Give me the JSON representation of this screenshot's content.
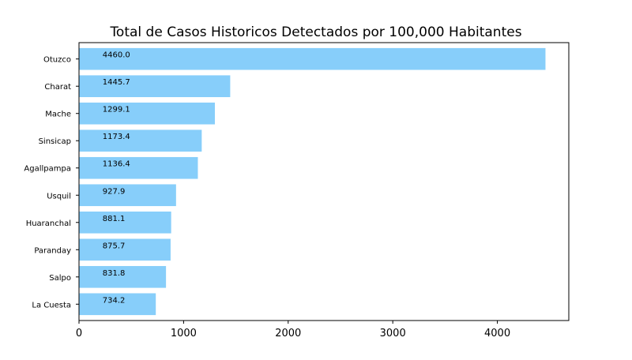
{
  "chart_data": {
    "type": "bar",
    "orientation": "horizontal",
    "title": "Total de Casos Historicos Detectados por 100,000 Habitantes",
    "xlabel": "",
    "ylabel": "",
    "categories": [
      "Otuzco",
      "Charat",
      "Mache",
      "Sinsicap",
      "Agallpampa",
      "Usquil",
      "Huaranchal",
      "Paranday",
      "Salpo",
      "La Cuesta"
    ],
    "values": [
      4460.0,
      1445.7,
      1299.1,
      1173.4,
      1136.4,
      927.9,
      881.1,
      875.7,
      831.8,
      734.2
    ],
    "data_labels": [
      "4460.0",
      "1445.7",
      "1299.1",
      "1173.4",
      "1136.4",
      "927.9",
      "881.1",
      "875.7",
      "831.8",
      "734.2"
    ],
    "xlim": [
      0,
      4683
    ],
    "xticks": [
      0,
      1000,
      2000,
      3000,
      4000
    ],
    "xtick_labels": [
      "0",
      "1000",
      "2000",
      "3000",
      "4000"
    ],
    "label_x": 225,
    "bar_color": "#87cefa",
    "grid": false,
    "legend": "none"
  }
}
